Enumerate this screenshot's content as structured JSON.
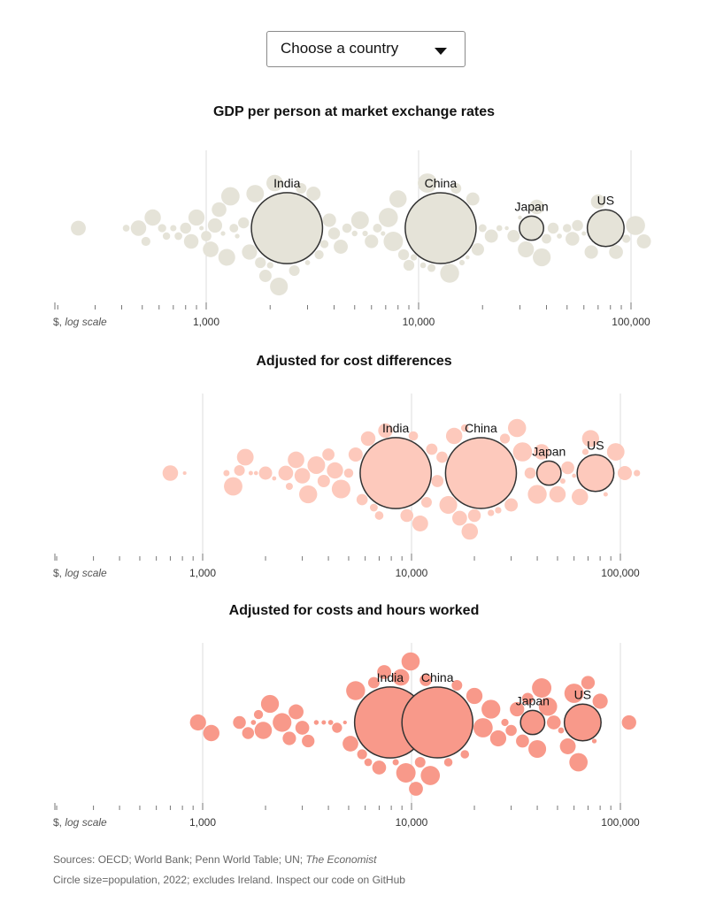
{
  "control": {
    "label": "Choose a country",
    "icon": "caret-down-icon"
  },
  "axis": {
    "scale_label_prefix": "$, ",
    "scale_label_italic": "log scale",
    "major_ticks": [
      {
        "value": 1000,
        "label": "1,000"
      },
      {
        "value": 10000,
        "label": "10,000"
      },
      {
        "value": 100000,
        "label": "100,000"
      }
    ]
  },
  "chart_data": [
    {
      "type": "scatter",
      "title": "GDP per person at market exchange rates",
      "xscale": "log",
      "xlim": [
        200,
        120000
      ],
      "color": "#e5e3d8",
      "stroke": "#e5e3d8",
      "highlight_stroke": "#333333",
      "labelled": [
        {
          "name": "India",
          "gdp": 2400,
          "pop": 1420
        },
        {
          "name": "China",
          "gdp": 12700,
          "pop": 1410
        },
        {
          "name": "Japan",
          "gdp": 34000,
          "pop": 125
        },
        {
          "name": "US",
          "gdp": 76000,
          "pop": 333
        }
      ],
      "others_gdp": [
        250,
        420,
        480,
        520,
        560,
        620,
        650,
        700,
        740,
        800,
        850,
        900,
        950,
        1000,
        1050,
        1100,
        1150,
        1200,
        1250,
        1300,
        1350,
        1400,
        1500,
        1600,
        1700,
        1800,
        1900,
        2000,
        2100,
        2200,
        2600,
        2800,
        3000,
        3200,
        3400,
        3600,
        3800,
        4000,
        4300,
        4600,
        5000,
        5300,
        5600,
        6000,
        6400,
        6800,
        7200,
        7600,
        8000,
        8500,
        9000,
        9500,
        10500,
        11000,
        11500,
        14000,
        15000,
        16000,
        17000,
        18000,
        19000,
        20000,
        22000,
        24000,
        26000,
        28000,
        30000,
        32000,
        36000,
        38000,
        40000,
        43000,
        46000,
        50000,
        53000,
        56000,
        60000,
        65000,
        70000,
        85000,
        95000,
        105000,
        115000
      ]
    },
    {
      "type": "scatter",
      "title": "Adjusted for cost differences",
      "xscale": "log",
      "xlim": [
        200,
        120000
      ],
      "color": "#fdc9bc",
      "stroke": "#fdc9bc",
      "highlight_stroke": "#333333",
      "labelled": [
        {
          "name": "India",
          "gdp": 8400,
          "pop": 1420
        },
        {
          "name": "China",
          "gdp": 21500,
          "pop": 1410
        },
        {
          "name": "Japan",
          "gdp": 45500,
          "pop": 125
        },
        {
          "name": "US",
          "gdp": 76000,
          "pop": 333
        }
      ],
      "others_gdp": [
        700,
        820,
        1300,
        1400,
        1500,
        1600,
        1700,
        1800,
        2000,
        2200,
        2500,
        2600,
        2800,
        3000,
        3200,
        3500,
        3800,
        4000,
        4300,
        4600,
        5000,
        5400,
        5800,
        6200,
        6600,
        7000,
        7500,
        9500,
        10200,
        11000,
        11800,
        12500,
        13300,
        14000,
        15000,
        16000,
        17000,
        18000,
        19000,
        20000,
        24000,
        26000,
        28000,
        30000,
        32000,
        34000,
        37000,
        40000,
        42000,
        50000,
        53000,
        56000,
        60000,
        64000,
        68000,
        72000,
        85000,
        95000,
        105000,
        120000
      ]
    },
    {
      "type": "scatter",
      "title": "Adjusted for costs and hours worked",
      "xscale": "log",
      "xlim": [
        200,
        120000
      ],
      "color": "#f8998a",
      "stroke": "#f8998a",
      "highlight_stroke": "#333333",
      "labelled": [
        {
          "name": "India",
          "gdp": 7900,
          "pop": 1420
        },
        {
          "name": "China",
          "gdp": 13300,
          "pop": 1410
        },
        {
          "name": "Japan",
          "gdp": 38000,
          "pop": 125
        },
        {
          "name": "US",
          "gdp": 66000,
          "pop": 333
        }
      ],
      "others_gdp": [
        950,
        1100,
        1500,
        1650,
        1750,
        1850,
        1950,
        2100,
        2400,
        2600,
        2800,
        3000,
        3200,
        3500,
        3800,
        4100,
        4400,
        4800,
        5100,
        5400,
        5800,
        6200,
        6600,
        7000,
        7400,
        8400,
        8900,
        9400,
        9900,
        10500,
        11000,
        11700,
        12300,
        15000,
        16500,
        18000,
        20000,
        22000,
        24000,
        26000,
        28000,
        30000,
        32000,
        34000,
        36000,
        40000,
        42000,
        45000,
        48000,
        52000,
        56000,
        60000,
        63000,
        70000,
        75000,
        80000,
        110000
      ]
    }
  ],
  "footer": {
    "line1_prefix": "Sources: OECD; World Bank; Penn World Table; UN; ",
    "line1_italic": "The Economist",
    "line2_prefix": "Circle size=population, 2022; excludes Ireland. ",
    "line2_link": "Inspect our code on GitHub"
  }
}
